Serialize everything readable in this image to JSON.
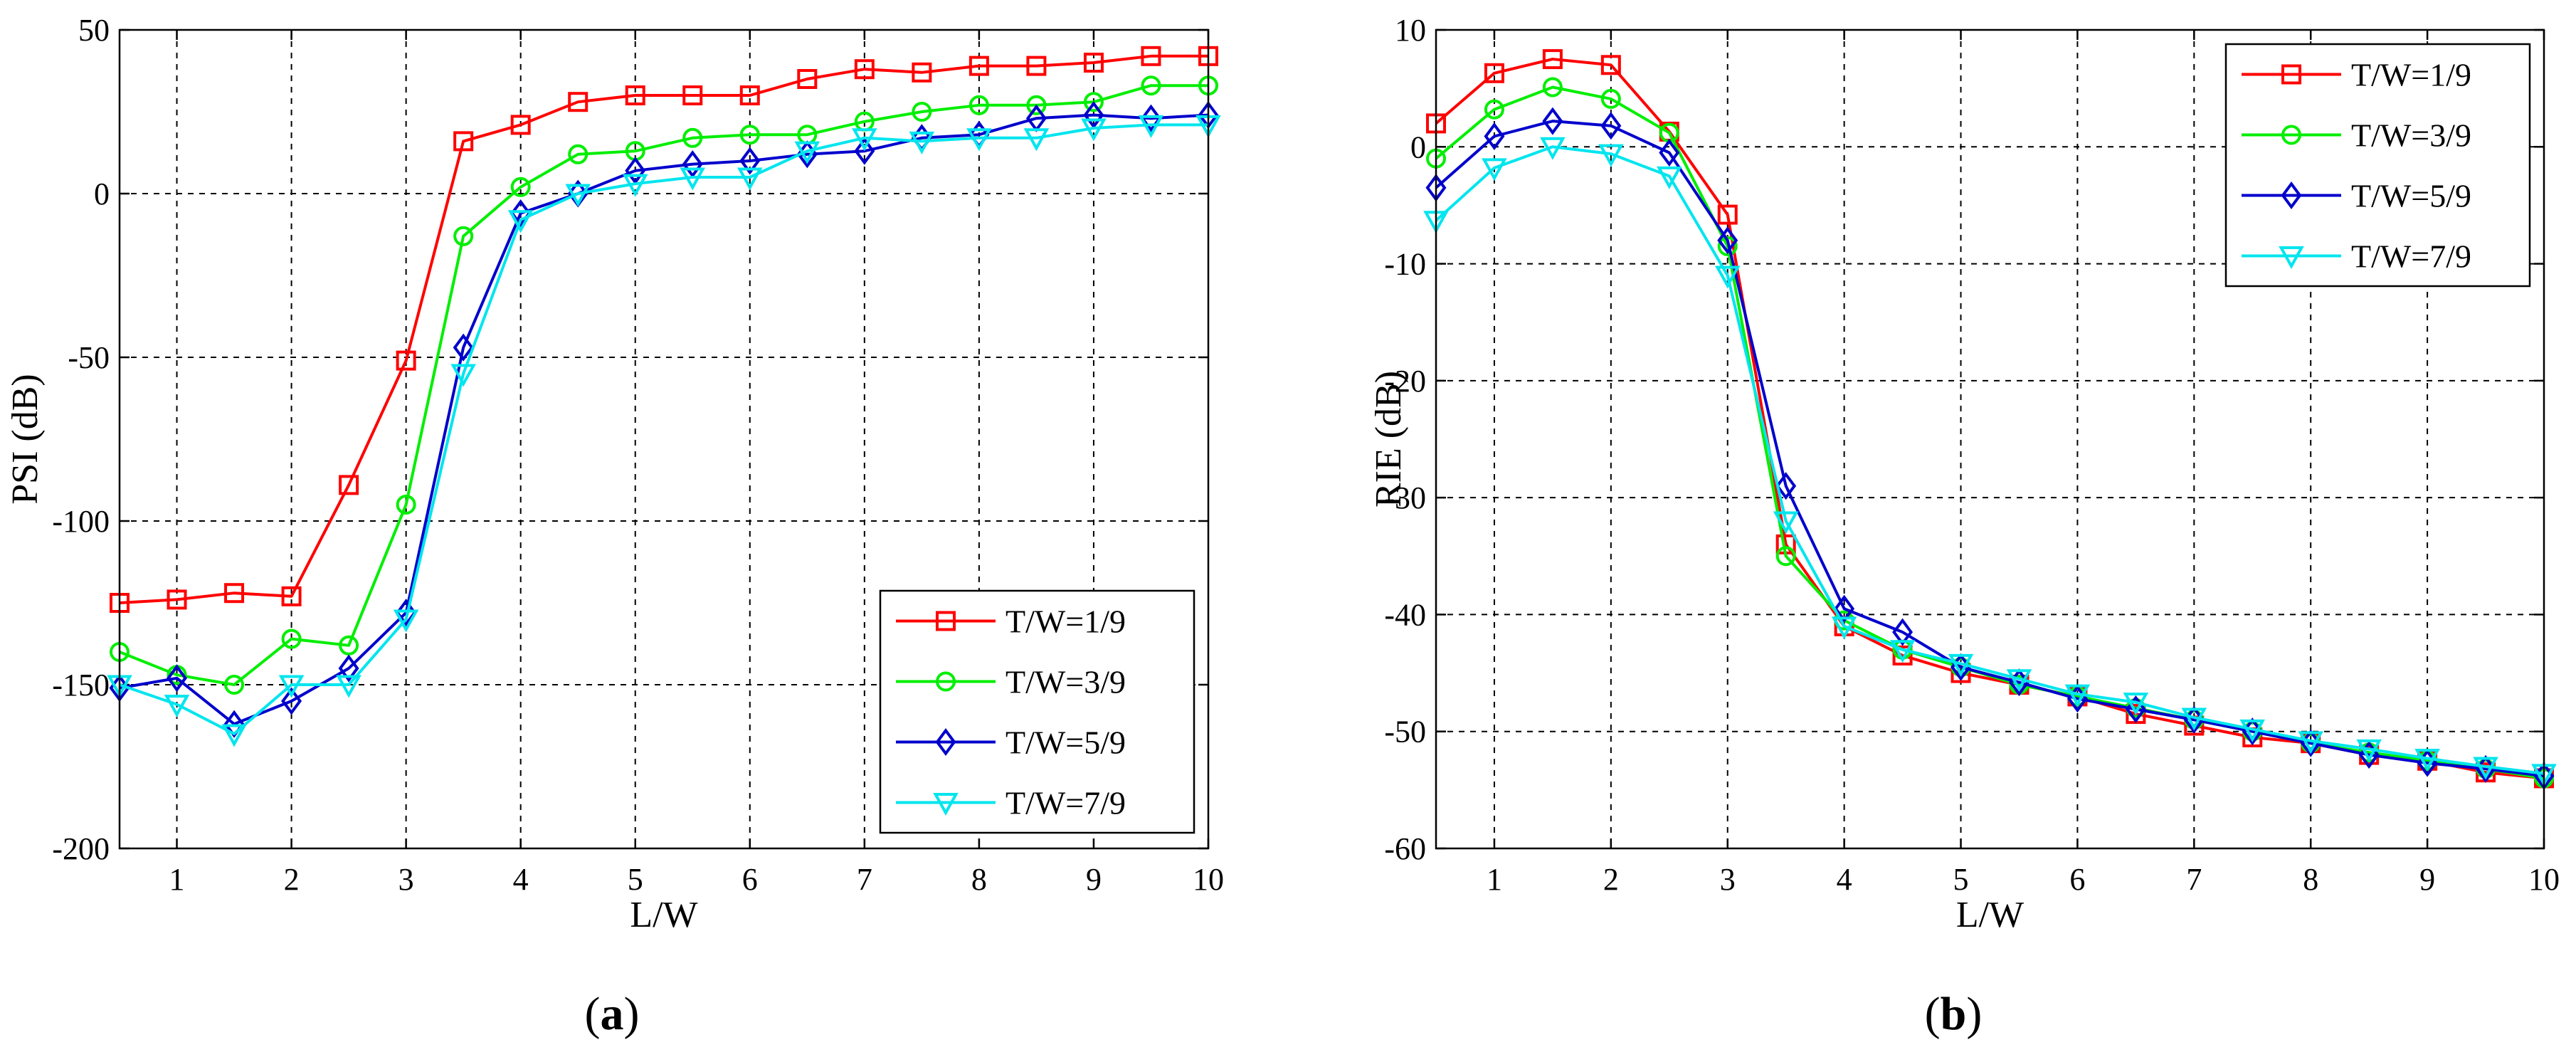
{
  "chart_data": [
    {
      "type": "line",
      "panel_label_prefix": "(",
      "panel_label_letter": "a",
      "panel_label_suffix": ")",
      "xlabel": "L/W",
      "ylabel": "PSI (dB)",
      "xlim": [
        0.5,
        10
      ],
      "ylim": [
        -200,
        50
      ],
      "xticks": [
        1,
        2,
        3,
        4,
        5,
        6,
        7,
        8,
        9,
        10
      ],
      "yticks": [
        -200,
        -150,
        -100,
        -50,
        0,
        50
      ],
      "legend_position": "bottom-right",
      "x": [
        0.5,
        1,
        1.5,
        2,
        2.5,
        3,
        3.5,
        4,
        4.5,
        5,
        5.5,
        6,
        6.5,
        7,
        7.5,
        8,
        8.5,
        9,
        9.5,
        10
      ],
      "series": [
        {
          "name": "T/W=1/9",
          "color": "#ff0000",
          "marker": "square",
          "values": [
            -125,
            -124,
            -122,
            -123,
            -89,
            -51,
            16,
            21,
            28,
            30,
            30,
            30,
            35,
            38,
            37,
            39,
            39,
            40,
            42,
            42
          ]
        },
        {
          "name": "T/W=3/9",
          "color": "#00ee00",
          "marker": "circle",
          "values": [
            -140,
            -147,
            -150,
            -136,
            -138,
            -95,
            -13,
            2,
            12,
            13,
            17,
            18,
            18,
            22,
            25,
            27,
            27,
            28,
            33,
            33
          ]
        },
        {
          "name": "T/W=5/9",
          "color": "#0000cc",
          "marker": "diamond",
          "values": [
            -151,
            -148,
            -162,
            -155,
            -145,
            -128,
            -47,
            -6,
            0,
            7,
            9,
            10,
            12,
            13,
            17,
            18,
            23,
            24,
            23,
            24
          ]
        },
        {
          "name": "T/W=7/9",
          "color": "#00e5ee",
          "marker": "triangle-down",
          "values": [
            -150,
            -156,
            -165,
            -150,
            -150,
            -130,
            -55,
            -8,
            0,
            3,
            5,
            5,
            13,
            17,
            16,
            17,
            17,
            20,
            21,
            21
          ]
        }
      ]
    },
    {
      "type": "line",
      "panel_label_prefix": "(",
      "panel_label_letter": "b",
      "panel_label_suffix": ")",
      "xlabel": "L/W",
      "ylabel": "RIE (dB)",
      "xlim": [
        0.5,
        10
      ],
      "ylim": [
        -60,
        10
      ],
      "xticks": [
        1,
        2,
        3,
        4,
        5,
        6,
        7,
        8,
        9,
        10
      ],
      "yticks": [
        -60,
        -50,
        -40,
        -30,
        -20,
        -10,
        0,
        10
      ],
      "legend_position": "top-right",
      "x": [
        0.5,
        1,
        1.5,
        2,
        2.5,
        3,
        3.5,
        4,
        4.5,
        5,
        5.5,
        6,
        6.5,
        7,
        7.5,
        8,
        8.5,
        9,
        9.5,
        10
      ],
      "series": [
        {
          "name": "T/W=1/9",
          "color": "#ff0000",
          "marker": "square",
          "values": [
            2,
            6.3,
            7.5,
            7,
            1.3,
            -5.8,
            -34,
            -41,
            -43.5,
            -45,
            -46,
            -47,
            -48.5,
            -49.5,
            -50.5,
            -51,
            -52,
            -52.5,
            -53.5,
            -54
          ]
        },
        {
          "name": "T/W=3/9",
          "color": "#00ee00",
          "marker": "circle",
          "values": [
            -1,
            3.2,
            5.1,
            4.1,
            1.2,
            -8.5,
            -35,
            -40.5,
            -43,
            -44.5,
            -46,
            -47,
            -48,
            -49,
            -50,
            -51,
            -51.8,
            -52.5,
            -53.2,
            -54
          ]
        },
        {
          "name": "T/W=5/9",
          "color": "#0000cc",
          "marker": "diamond",
          "values": [
            -3.5,
            0.9,
            2.2,
            1.8,
            -0.5,
            -8,
            -29,
            -39.5,
            -41.5,
            -44.5,
            -45.8,
            -47.2,
            -48.1,
            -49,
            -50,
            -51,
            -52,
            -52.7,
            -53.2,
            -53.8
          ]
        },
        {
          "name": "T/W=7/9",
          "color": "#00e5ee",
          "marker": "triangle-down",
          "values": [
            -6.3,
            -1.8,
            0,
            -0.6,
            -2.5,
            -11,
            -32,
            -41,
            -43,
            -44.2,
            -45.5,
            -46.8,
            -47.5,
            -48.8,
            -49.8,
            -50.8,
            -51.5,
            -52.3,
            -53,
            -53.6
          ]
        }
      ]
    }
  ]
}
